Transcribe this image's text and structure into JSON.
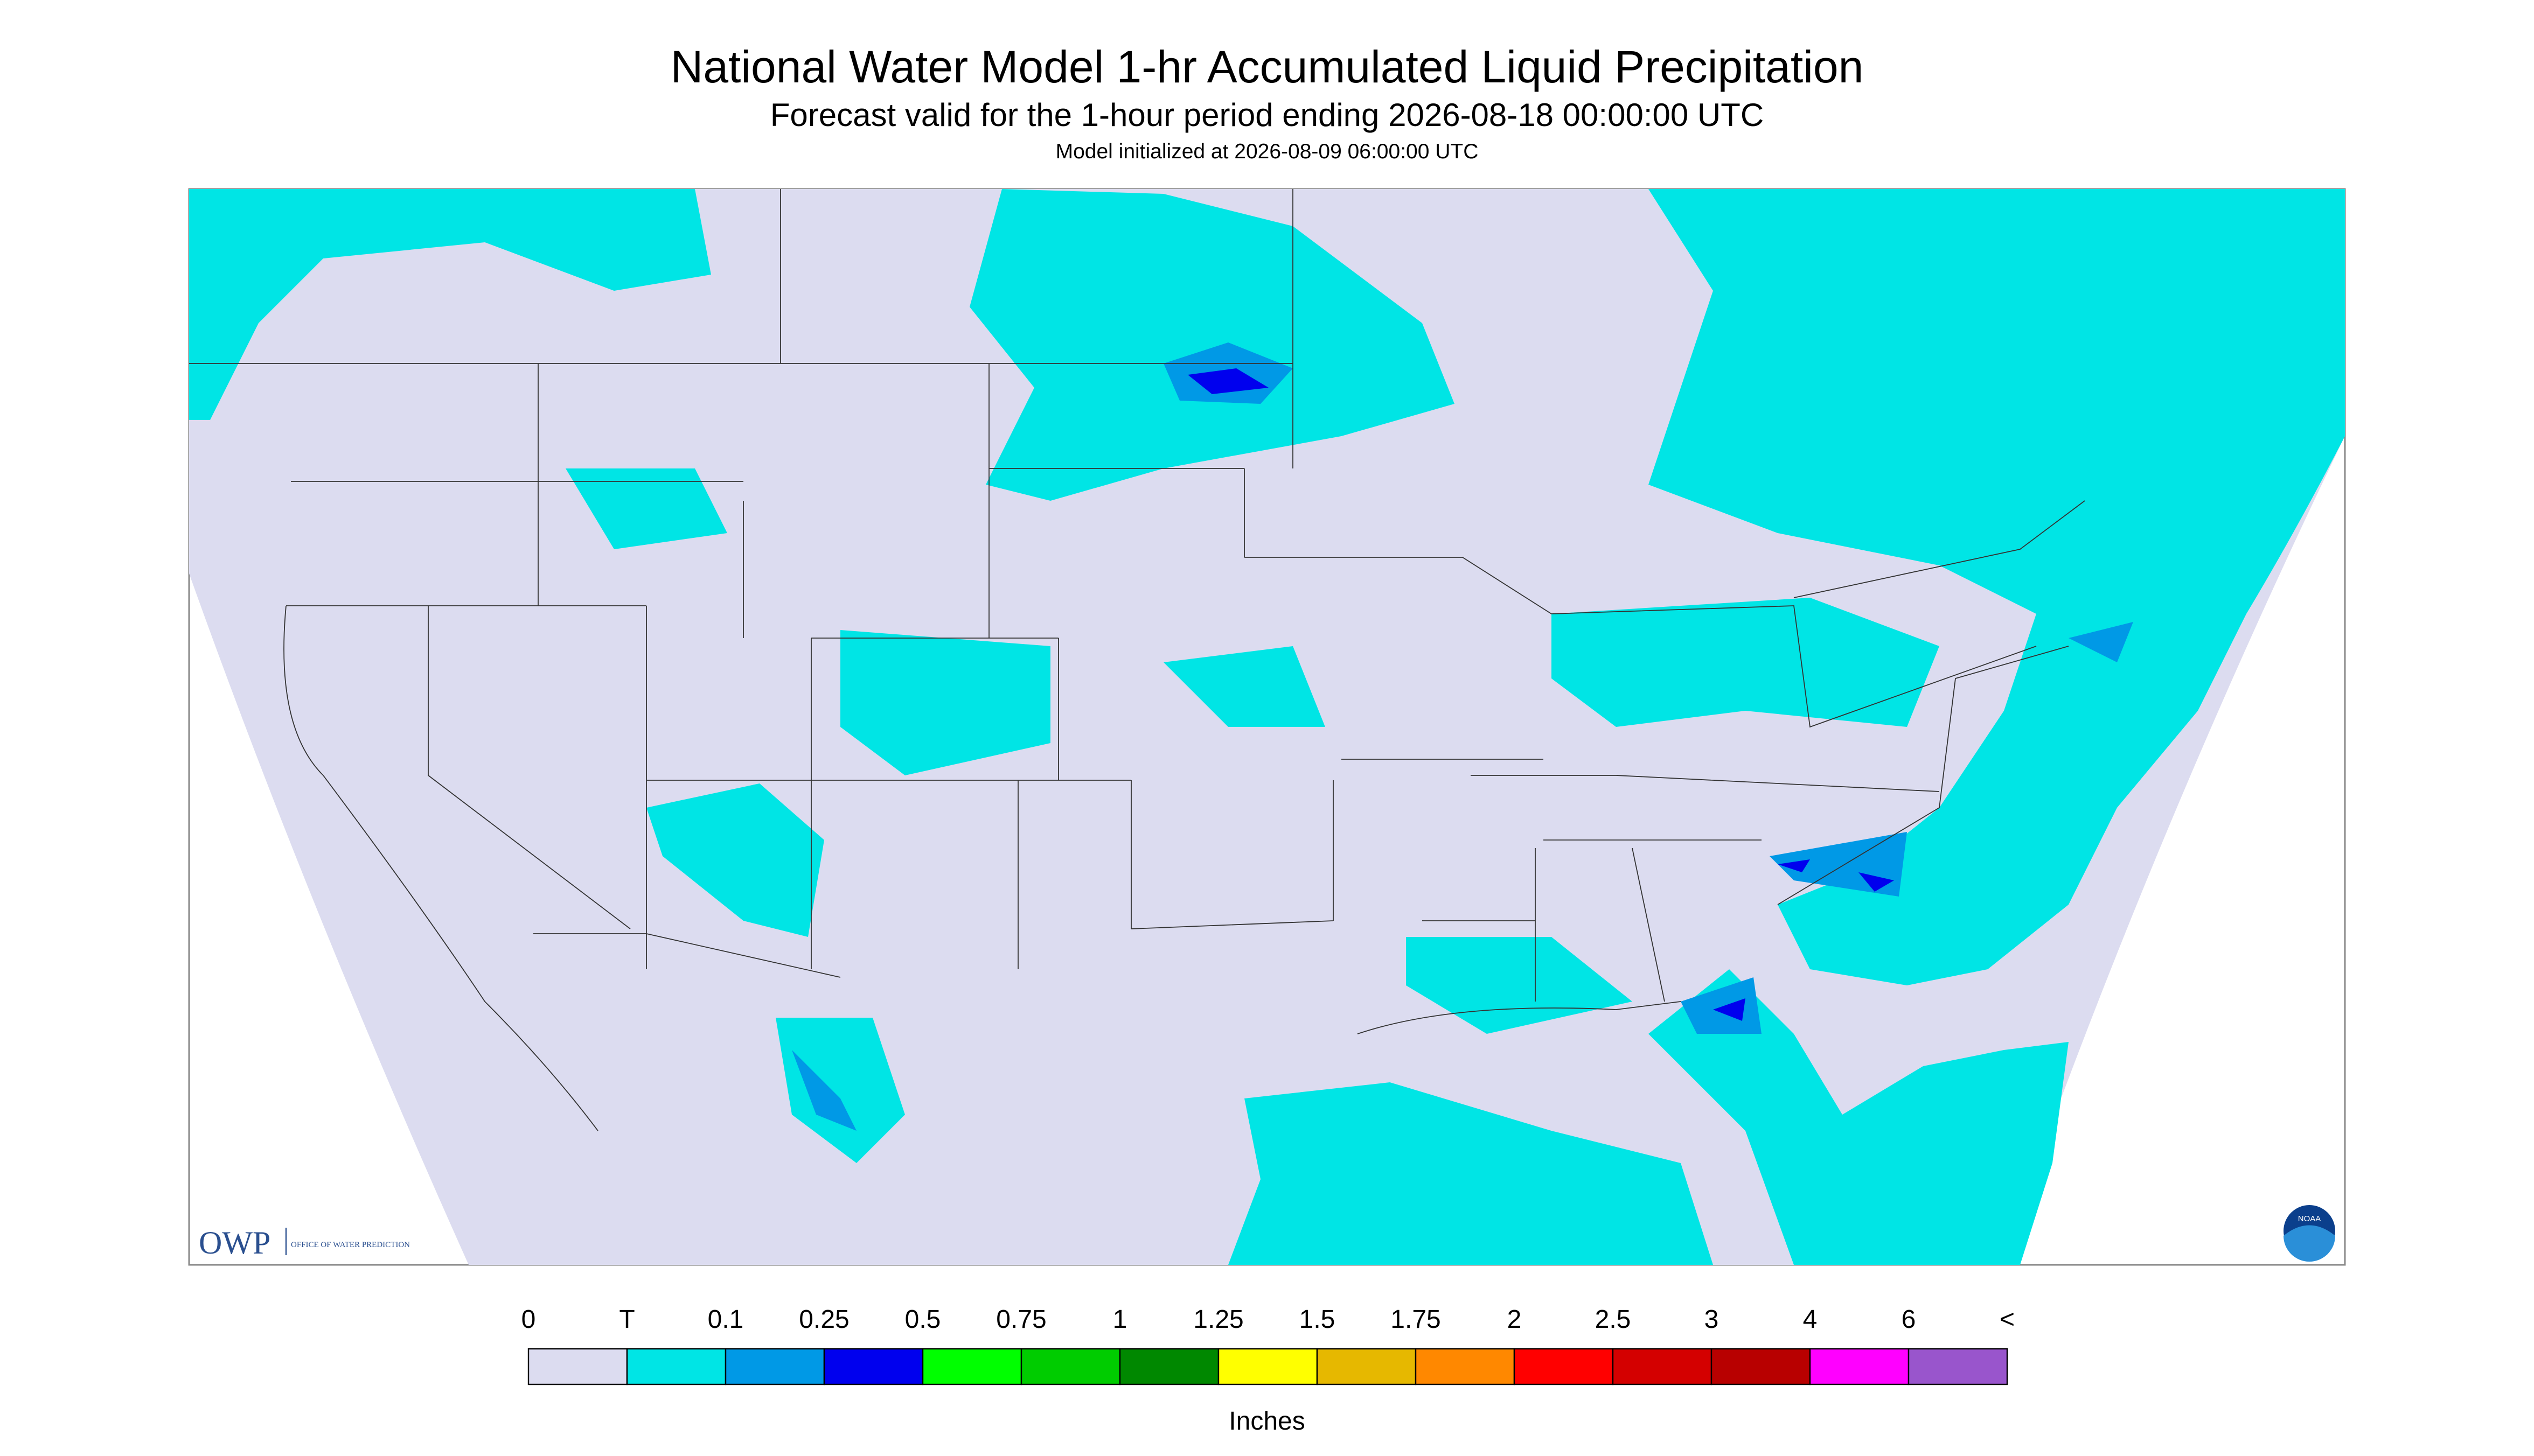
{
  "header": {
    "title": "National Water Model 1-hr Accumulated Liquid Precipitation",
    "subtitle": "Forecast valid for the 1-hour period ending 2026-08-18 00:00:00 UTC",
    "initialized": "Model initialized at 2026-08-09 06:00:00 UTC"
  },
  "logos": {
    "owp": "OWP",
    "owp_full": "OFFICE OF WATER PREDICTION",
    "noaa": "NOAA"
  },
  "legend": {
    "labels": [
      "0",
      "T",
      "0.1",
      "0.25",
      "0.5",
      "0.75",
      "1",
      "1.25",
      "1.5",
      "1.75",
      "2",
      "2.5",
      "3",
      "4",
      "6",
      "<"
    ],
    "colors": [
      "#dcdcf0",
      "#00e5e5",
      "#0099e6",
      "#0000ee",
      "#00ff00",
      "#00cc00",
      "#008800",
      "#ffff00",
      "#e6b800",
      "#ff8800",
      "#ff0000",
      "#d40000",
      "#b80000",
      "#ff00ff",
      "#9955cc"
    ],
    "unit": "Inches"
  }
}
